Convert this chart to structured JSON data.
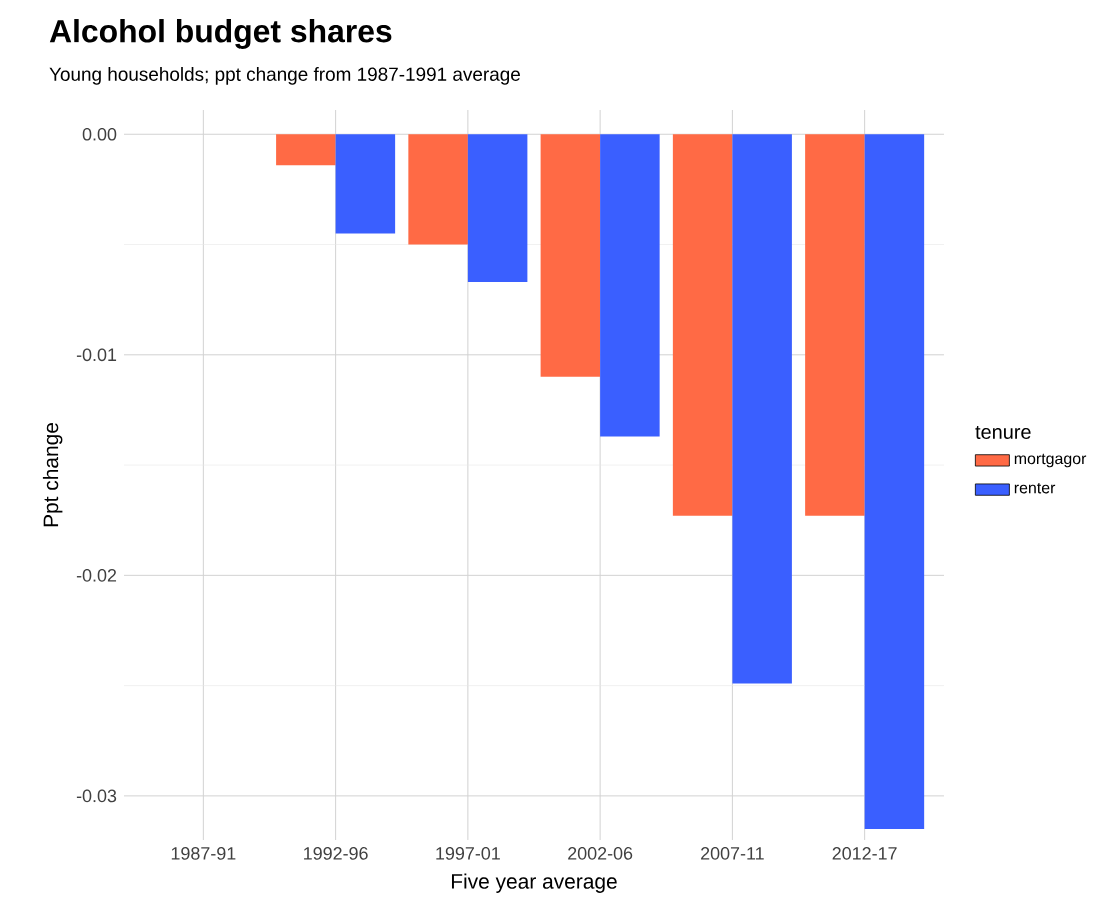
{
  "chart_data": {
    "type": "bar",
    "title": "Alcohol budget shares",
    "subtitle": "Young households; ppt change from 1987-1991 average",
    "xlabel": "Five year average",
    "ylabel": "Ppt change",
    "legend_title": "tenure",
    "categories": [
      "1987-91",
      "1992-96",
      "1997-01",
      "2002-06",
      "2007-11",
      "2012-17"
    ],
    "series": [
      {
        "name": "mortgagor",
        "color": "#ff6a45",
        "values": [
          0,
          -0.0014,
          -0.005,
          -0.011,
          -0.0173,
          -0.0173
        ]
      },
      {
        "name": "renter",
        "color": "#3a5fff",
        "values": [
          0,
          -0.0045,
          -0.0067,
          -0.0137,
          -0.0249,
          -0.0315
        ]
      }
    ],
    "ylim": [
      -0.032,
      0.0011
    ],
    "yticks": [
      {
        "value": 0,
        "label": "0.00"
      },
      {
        "value": -0.01,
        "label": "-0.01"
      },
      {
        "value": -0.02,
        "label": "-0.02"
      },
      {
        "value": -0.03,
        "label": "-0.03"
      }
    ],
    "grid": true,
    "legend": "right"
  }
}
